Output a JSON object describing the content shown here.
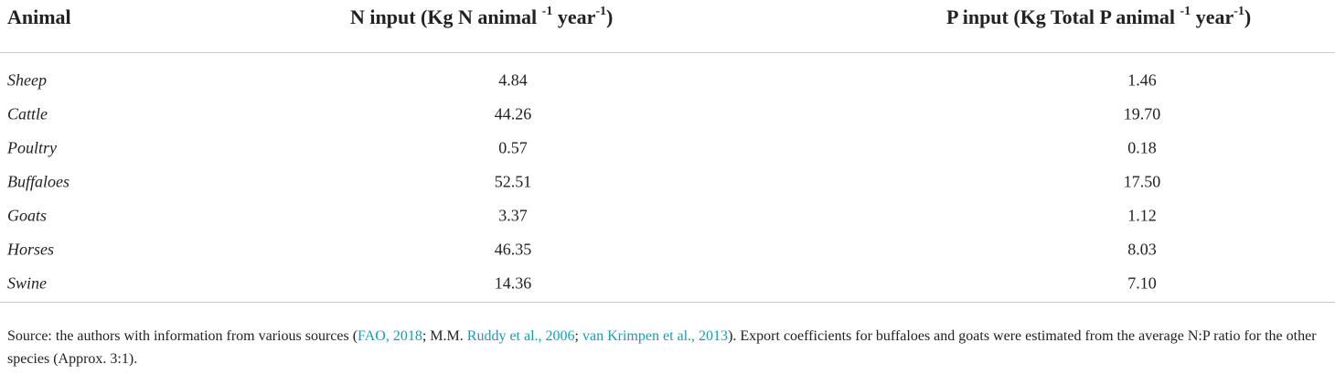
{
  "table": {
    "header": [
      [
        "Animal"
      ],
      [
        "N input (Kg N animal ",
        "-1",
        " year",
        "-1",
        ")"
      ],
      [
        "P input (Kg Total P animal ",
        "-1",
        " year",
        "-1",
        ")"
      ]
    ],
    "rows": [
      [
        "Sheep",
        "4.84",
        "1.46"
      ],
      [
        "Cattle",
        "44.26",
        "19.70"
      ],
      [
        "Poultry",
        "0.57",
        "0.18"
      ],
      [
        "Buffaloes",
        "52.51",
        "17.50"
      ],
      [
        "Goats",
        "3.37",
        "1.12"
      ],
      [
        "Horses",
        "46.35",
        "8.03"
      ],
      [
        "Swine",
        "14.36",
        "7.10"
      ]
    ]
  },
  "note": [
    "Source: the authors with information from various sources (",
    "FAO, 2018",
    "; M.M. ",
    "Ruddy et al., 2006",
    "; ",
    "van Krimpen et al., 2013",
    "). Export coefficients for buffaloes and goats were estimated from the average N:P ratio for the other species (Approx. 3:1)."
  ]
}
